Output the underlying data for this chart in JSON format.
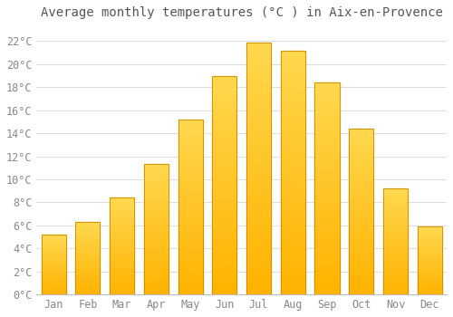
{
  "title": "Average monthly temperatures (°C ) in Aix-en-Provence",
  "months": [
    "Jan",
    "Feb",
    "Mar",
    "Apr",
    "May",
    "Jun",
    "Jul",
    "Aug",
    "Sep",
    "Oct",
    "Nov",
    "Dec"
  ],
  "values": [
    5.2,
    6.3,
    8.4,
    11.3,
    15.2,
    19.0,
    21.9,
    21.2,
    18.4,
    14.4,
    9.2,
    5.9
  ],
  "bar_color": "#FFB300",
  "bar_color_light": "#FFD060",
  "bar_edge_color": "#CC8800",
  "background_color": "#FFFFFF",
  "grid_color": "#DDDDDD",
  "ylim": [
    0,
    23.5
  ],
  "yticks": [
    0,
    2,
    4,
    6,
    8,
    10,
    12,
    14,
    16,
    18,
    20,
    22
  ],
  "ytick_labels": [
    "0°C",
    "2°C",
    "4°C",
    "6°C",
    "8°C",
    "10°C",
    "12°C",
    "14°C",
    "16°C",
    "18°C",
    "20°C",
    "22°C"
  ],
  "title_fontsize": 10,
  "tick_fontsize": 8.5,
  "title_color": "#555555",
  "tick_color": "#888888",
  "font_family": "monospace",
  "bar_width": 0.72
}
